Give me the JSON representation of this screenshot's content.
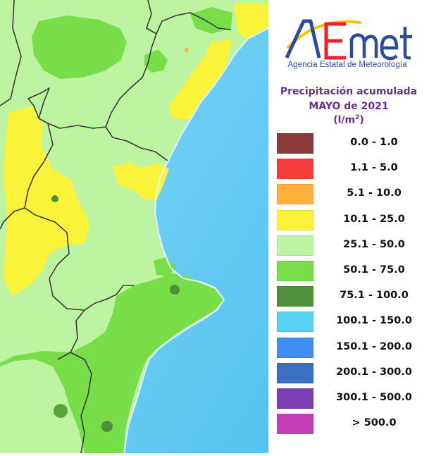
{
  "logo": {
    "text": "AEMet",
    "agency": "Agencia Estatal de Meteorología",
    "colors": {
      "blue": "#2a4aa0",
      "red": "#e8212a",
      "yellow": "#f7c400"
    }
  },
  "title": {
    "line1": "Precipitación acumulada",
    "line2": "MAYO de 2021",
    "unit_base": "(l/m",
    "unit_sup": "2",
    "unit_close": ")",
    "color": "#6b2f8f"
  },
  "legend": [
    {
      "range": "0.0 - 1.0",
      "color": "#8b3a3a"
    },
    {
      "range": "1.1 - 5.0",
      "color": "#f43e3e"
    },
    {
      "range": "5.1 - 10.0",
      "color": "#ffb13b"
    },
    {
      "range": "10.1 - 25.0",
      "color": "#fbf23a"
    },
    {
      "range": "25.1 - 50.0",
      "color": "#bdf4a2"
    },
    {
      "range": "50.1 - 75.0",
      "color": "#77de4a"
    },
    {
      "range": "75.1 - 100.0",
      "color": "#4f8f3c"
    },
    {
      "range": "100.1 - 150.0",
      "color": "#57d2f5"
    },
    {
      "range": "150.1 - 200.0",
      "color": "#3f8ff0"
    },
    {
      "range": "200.1 - 300.0",
      "color": "#3c6fc0"
    },
    {
      "range": "300.1 - 500.0",
      "color": "#7a3fb2"
    },
    {
      "range": "> 500.0",
      "color": "#c53fb8"
    }
  ],
  "map": {
    "sea_color": "#6ccbf2",
    "land_base_color": "#bdf4a2",
    "boundary_color": "#3a3a3a"
  }
}
